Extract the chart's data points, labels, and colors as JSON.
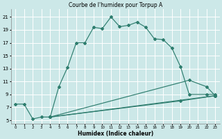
{
  "title": "Courbe de l'humidex pour Torpup A",
  "xlabel": "Humidex (Indice chaleur)",
  "bg_color": "#cce8e8",
  "line_color": "#2e7d6e",
  "grid_color": "#ffffff",
  "xlim": [
    -0.5,
    23.5
  ],
  "ylim": [
    4.5,
    22.2
  ],
  "xticks": [
    0,
    1,
    2,
    3,
    4,
    5,
    6,
    7,
    8,
    9,
    10,
    11,
    12,
    13,
    14,
    15,
    16,
    17,
    18,
    19,
    20,
    21,
    22,
    23
  ],
  "yticks": [
    5,
    7,
    9,
    11,
    13,
    15,
    17,
    19,
    21
  ],
  "line1_x": [
    0,
    1,
    2,
    3,
    4,
    5,
    6,
    7,
    8,
    9,
    10,
    11,
    12,
    13,
    14,
    15,
    16,
    17,
    18,
    19,
    20,
    22,
    23
  ],
  "line1_y": [
    7.5,
    7.5,
    5.2,
    5.5,
    5.5,
    10.2,
    13.2,
    17.0,
    17.0,
    19.4,
    19.2,
    21.0,
    19.5,
    19.7,
    20.2,
    19.4,
    17.6,
    17.5,
    16.2,
    13.3,
    9.0,
    9.0,
    9.0
  ],
  "line2_x": [
    4,
    23
  ],
  "line2_y": [
    5.5,
    8.8
  ],
  "line3_x": [
    4,
    20,
    22,
    23
  ],
  "line3_y": [
    5.5,
    11.2,
    10.2,
    8.8
  ],
  "line4_x": [
    4,
    19,
    23
  ],
  "line4_y": [
    5.5,
    8.0,
    8.8
  ]
}
